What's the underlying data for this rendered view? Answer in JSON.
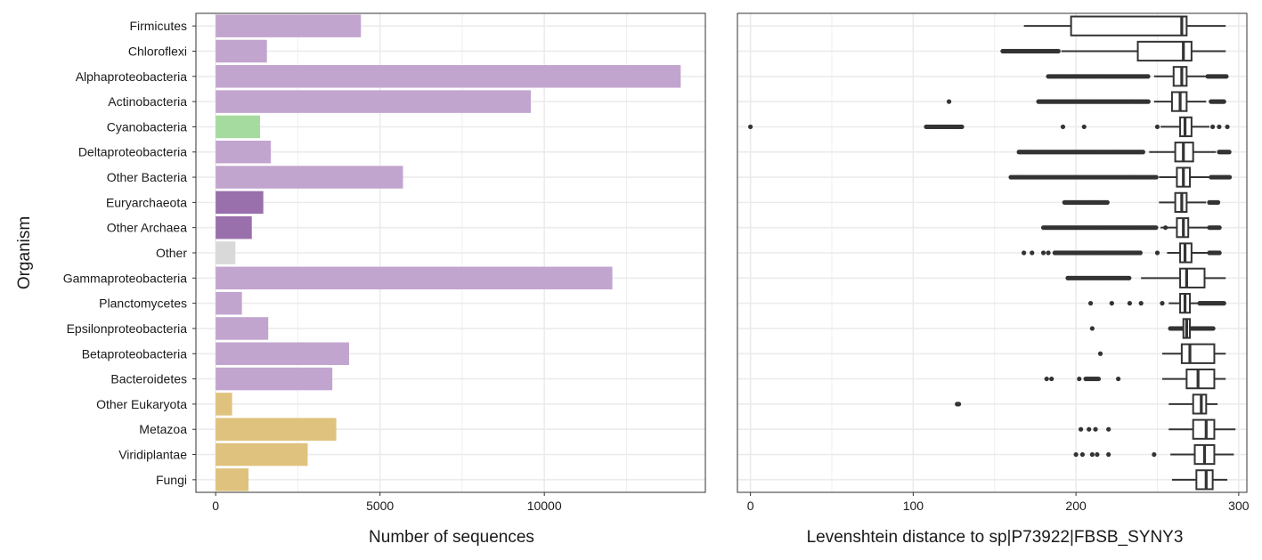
{
  "chart_data": [
    {
      "type": "bar",
      "orientation": "horizontal",
      "ylabel": "Organism",
      "xlabel": "Number of sequences",
      "xlim": [
        -600,
        14900
      ],
      "xticks": [
        0,
        5000,
        10000
      ],
      "tick_labels": [
        "0",
        "5000",
        "10000"
      ],
      "grid": true,
      "categories": [
        "Firmicutes",
        "Chloroflexi",
        "Alphaproteobacteria",
        "Actinobacteria",
        "Cyanobacteria",
        "Deltaproteobacteria",
        "Other Bacteria",
        "Euryarchaeota",
        "Other Archaea",
        "Other",
        "Gammaproteobacteria",
        "Planctomycetes",
        "Epsilonproteobacteria",
        "Betaproteobacteria",
        "Bacteroidetes",
        "Other Eukaryota",
        "Metazoa",
        "Viridiplantae",
        "Fungi"
      ],
      "values": [
        4420,
        1560,
        14150,
        9590,
        1350,
        1680,
        5700,
        1450,
        1100,
        600,
        12070,
        800,
        1600,
        4060,
        3550,
        500,
        3670,
        2800,
        1000
      ],
      "colors": [
        "#c2a5cf",
        "#c2a5cf",
        "#c2a5cf",
        "#c2a5cf",
        "#a6dba0",
        "#c2a5cf",
        "#c2a5cf",
        "#9970ab",
        "#9970ab",
        "#d9d9d9",
        "#c2a5cf",
        "#c2a5cf",
        "#c2a5cf",
        "#c2a5cf",
        "#c2a5cf",
        "#dfc27d",
        "#dfc27d",
        "#dfc27d",
        "#dfc27d"
      ]
    },
    {
      "type": "box",
      "orientation": "horizontal",
      "xlabel": "Levenshtein distance to sp|P73922|FBSB_SYNY3",
      "xlim": [
        -8,
        305
      ],
      "xticks": [
        0,
        100,
        200,
        300
      ],
      "tick_labels": [
        "0",
        "100",
        "200",
        "300"
      ],
      "grid": true,
      "categories": [
        "Firmicutes",
        "Chloroflexi",
        "Alphaproteobacteria",
        "Actinobacteria",
        "Cyanobacteria",
        "Deltaproteobacteria",
        "Other Bacteria",
        "Euryarchaeota",
        "Other Archaea",
        "Other",
        "Gammaproteobacteria",
        "Planctomycetes",
        "Epsilonproteobacteria",
        "Betaproteobacteria",
        "Bacteroidetes",
        "Other Eukaryota",
        "Metazoa",
        "Viridiplantae",
        "Fungi"
      ],
      "boxes": [
        {
          "lo": 168,
          "q1": 197,
          "median": 265,
          "q3": 268,
          "hi": 292
        },
        {
          "lo": 191,
          "q1": 238,
          "median": 266,
          "q3": 271,
          "hi": 292
        },
        {
          "lo": 248,
          "q1": 260,
          "median": 265,
          "q3": 268,
          "hi": 280
        },
        {
          "lo": 248,
          "q1": 259,
          "median": 264,
          "q3": 268,
          "hi": 280
        },
        {
          "lo": 252,
          "q1": 264,
          "median": 267,
          "q3": 271,
          "hi": 282
        },
        {
          "lo": 245,
          "q1": 261,
          "median": 266,
          "q3": 272,
          "hi": 286
        },
        {
          "lo": 251,
          "q1": 262,
          "median": 266,
          "q3": 270,
          "hi": 282
        },
        {
          "lo": 251,
          "q1": 261,
          "median": 265,
          "q3": 268,
          "hi": 280
        },
        {
          "lo": 252,
          "q1": 262,
          "median": 266,
          "q3": 269,
          "hi": 281
        },
        {
          "lo": 256,
          "q1": 264,
          "median": 267,
          "q3": 271,
          "hi": 283
        },
        {
          "lo": 240,
          "q1": 264,
          "median": 268,
          "q3": 279,
          "hi": 292
        },
        {
          "lo": 257,
          "q1": 264,
          "median": 267,
          "q3": 270,
          "hi": 280
        },
        {
          "lo": 262,
          "q1": 266,
          "median": 268,
          "q3": 270,
          "hi": 274
        },
        {
          "lo": 253,
          "q1": 265,
          "median": 270,
          "q3": 285,
          "hi": 292
        },
        {
          "lo": 253,
          "q1": 268,
          "median": 275,
          "q3": 285,
          "hi": 292
        },
        {
          "lo": 257,
          "q1": 272,
          "median": 277,
          "q3": 280,
          "hi": 287
        },
        {
          "lo": 257,
          "q1": 272,
          "median": 280,
          "q3": 285,
          "hi": 298
        },
        {
          "lo": 258,
          "q1": 273,
          "median": 279,
          "q3": 285,
          "hi": 297
        },
        {
          "lo": 259,
          "q1": 274,
          "median": 280,
          "q3": 284,
          "hi": 293
        }
      ],
      "outliers": [
        [],
        [
          [
            155,
            190
          ]
        ],
        [
          [
            183,
            245
          ],
          [
            281,
            293
          ]
        ],
        [
          122,
          [
            177,
            245
          ],
          [
            283,
            291
          ]
        ],
        [
          0,
          [
            108,
            130
          ],
          192,
          205,
          250,
          284,
          288,
          293
        ],
        [
          [
            165,
            242
          ],
          [
            288,
            295
          ]
        ],
        [
          [
            160,
            250
          ],
          [
            283,
            295
          ]
        ],
        [
          [
            193,
            220
          ],
          [
            282,
            288
          ]
        ],
        [
          [
            180,
            250
          ],
          255,
          [
            282,
            289
          ]
        ],
        [
          168,
          173,
          180,
          183,
          [
            187,
            240
          ],
          250,
          [
            282,
            289
          ]
        ],
        [
          [
            195,
            233
          ]
        ],
        [
          209,
          222,
          233,
          240,
          253,
          [
            276,
            291
          ]
        ],
        [
          210,
          [
            258,
            285
          ]
        ],
        [
          215
        ],
        [
          182,
          185,
          202,
          [
            206,
            214
          ],
          226
        ],
        [
          127,
          128
        ],
        [
          203,
          208,
          212,
          220
        ],
        [
          200,
          204,
          210,
          213,
          220,
          248
        ],
        []
      ]
    }
  ]
}
